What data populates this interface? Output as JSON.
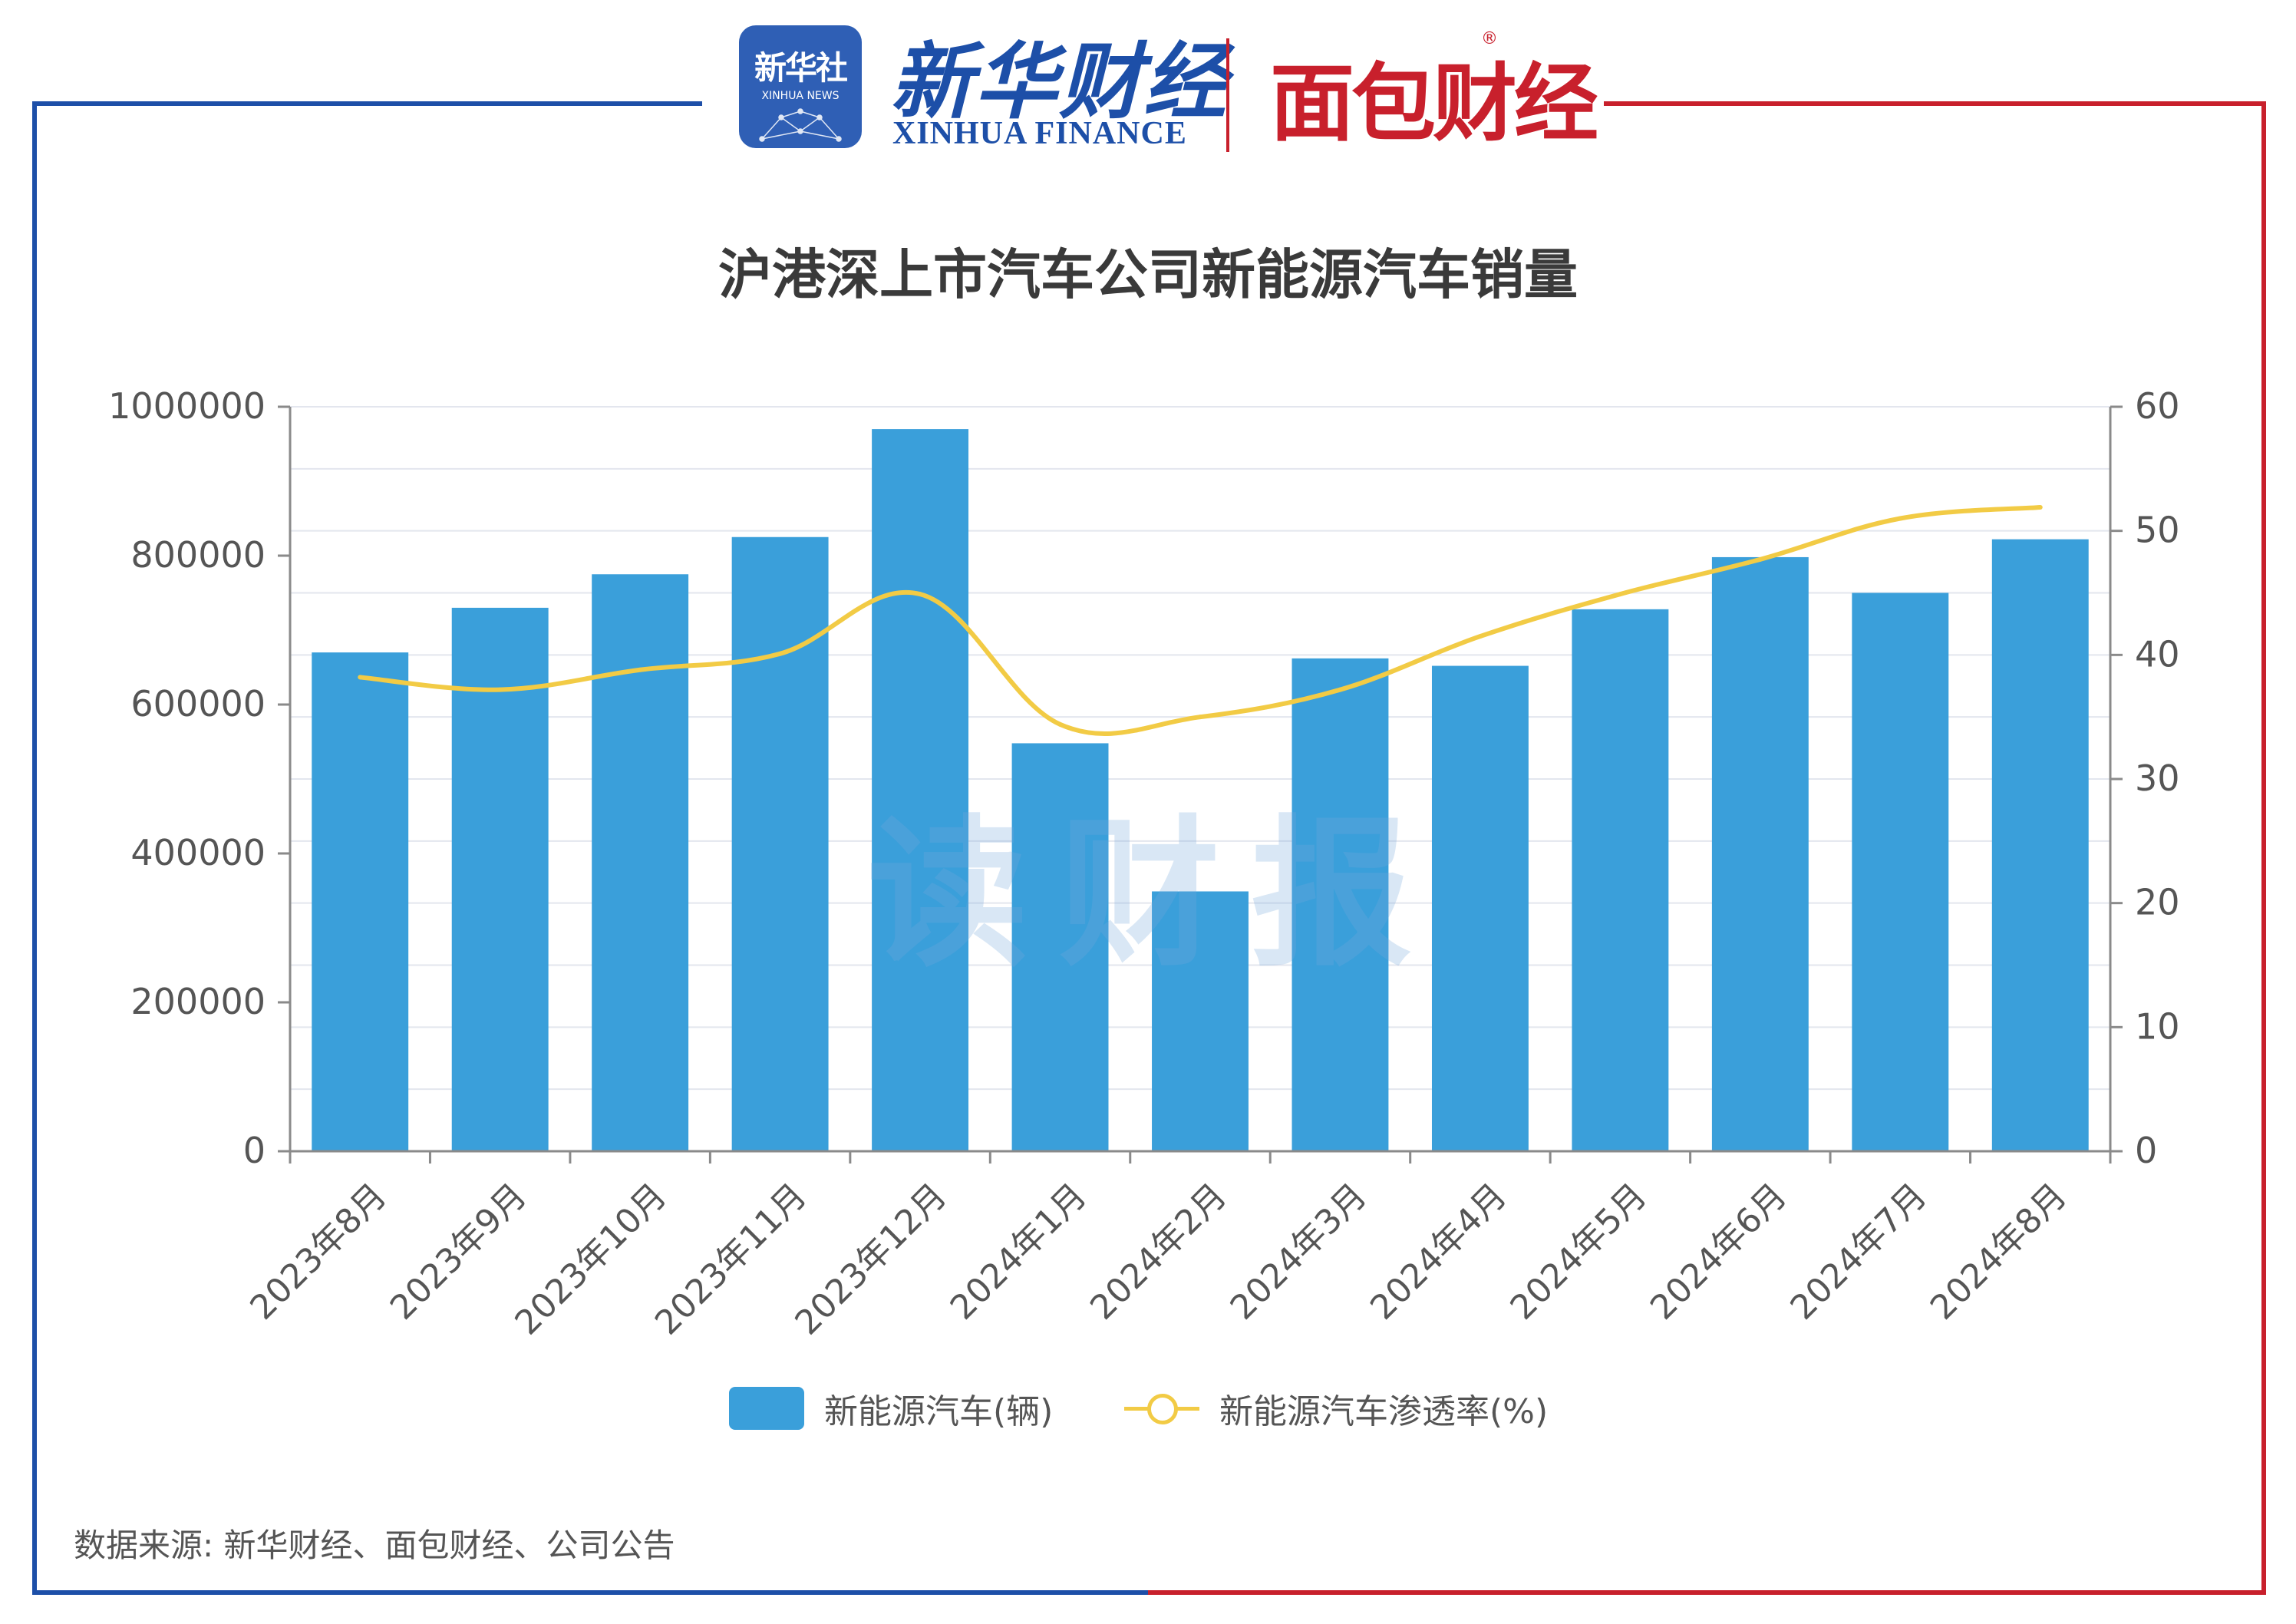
{
  "brand": {
    "xinhua_logo_cn": "新华社",
    "xinhua_logo_en": "XINHUA NEWS",
    "xinhua_finance_cn": "新华财经",
    "xinhua_finance_en": "XINHUA FINANCE",
    "mianbao_cn": "面包财经",
    "registered_mark": "®",
    "watermark": "读财报"
  },
  "colors": {
    "bar": "#3a9fda",
    "line": "#f2cb45",
    "frame_left": "#1d4fa8",
    "frame_right": "#c8202c",
    "grid": "#e3e6ee",
    "axis": "#8a8a8a",
    "text": "#555555"
  },
  "chart_data": {
    "type": "bar",
    "title": "沪港深上市汽车公司新能源汽车销量",
    "categories": [
      "2023年8月",
      "2023年9月",
      "2023年10月",
      "2023年11月",
      "2023年12月",
      "2024年1月",
      "2024年2月",
      "2024年3月",
      "2024年4月",
      "2024年5月",
      "2024年6月",
      "2024年7月",
      "2024年8月"
    ],
    "series": [
      {
        "name": "新能源汽车(辆)",
        "type": "bar",
        "axis": "left",
        "values": [
          670000,
          730000,
          775000,
          825000,
          970000,
          548000,
          349000,
          662000,
          652000,
          728000,
          798000,
          750000,
          822000
        ]
      },
      {
        "name": "新能源汽车渗透率(%)",
        "type": "line",
        "axis": "right",
        "values": [
          38.2,
          37.2,
          38.8,
          40.1,
          44.9,
          34.4,
          35.0,
          37.2,
          41.5,
          44.9,
          47.7,
          51.0,
          51.9
        ]
      }
    ],
    "y_left": {
      "min": 0,
      "max": 1000000,
      "ticks": [
        0,
        200000,
        400000,
        600000,
        800000,
        1000000
      ]
    },
    "y_right": {
      "min": 0,
      "max": 60,
      "ticks": [
        0,
        10,
        20,
        30,
        40,
        50,
        60
      ]
    },
    "grid": true,
    "legend_position": "bottom-center"
  },
  "source": "数据来源: 新华财经、面包财经、公司公告"
}
